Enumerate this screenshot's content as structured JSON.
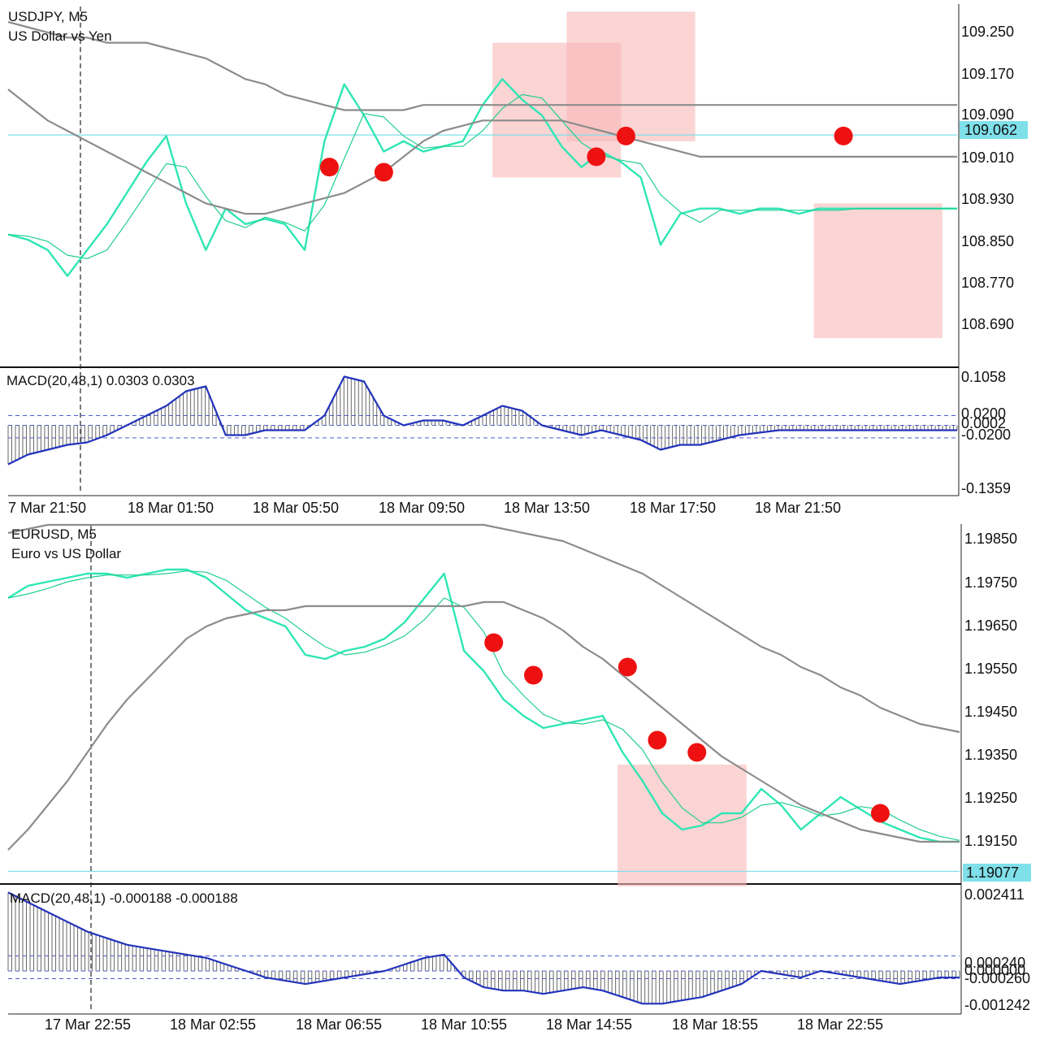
{
  "charts": [
    {
      "symbol_line": "USDJPY, M5",
      "description": "US Dollar vs Yen",
      "price_ticks": [
        "109.250",
        "109.170",
        "109.090",
        "109.010",
        "108.930",
        "108.850",
        "108.770",
        "108.690"
      ],
      "current_price": "109.062",
      "macd_label": "MACD(20,48,1) 0.0303 0.0303",
      "macd_ticks": {
        "top": "0.1058",
        "level_a": "0.0200",
        "level_b": "0.0002",
        "level_c": "-0.0200",
        "bottom": "-0.1359"
      },
      "time_labels": [
        "7 Mar 21:50",
        "18 Mar 01:50",
        "18 Mar 05:50",
        "18 Mar 09:50",
        "18 Mar 13:50",
        "18 Mar 17:50",
        "18 Mar 21:50"
      ],
      "colors": {
        "line_fast": "#2ee6b4",
        "line_slow": "#1fcf8e",
        "envelope": "#8c8c8c",
        "current_price": "#7fe0ea",
        "markers": "#ee1111",
        "zones": "#f9b7b7",
        "macd_line": "#2233bb"
      }
    },
    {
      "symbol_line": "EURUSD, M5",
      "description": "Euro vs US Dollar",
      "price_ticks": [
        "1.19850",
        "1.19750",
        "1.19650",
        "1.19550",
        "1.19450",
        "1.19350",
        "1.19250",
        "1.19150"
      ],
      "current_price": "1.19077",
      "macd_label": "MACD(20,48,1) -0.000188 -0.000188",
      "macd_ticks": {
        "top": "0.002411",
        "level_a": "0.000240",
        "level_b": "0.000000",
        "level_c": "-0.000260",
        "bottom": "-0.001242"
      },
      "time_labels": [
        "17 Mar 22:55",
        "18 Mar 02:55",
        "18 Mar 06:55",
        "18 Mar 10:55",
        "18 Mar 14:55",
        "18 Mar 18:55",
        "18 Mar 22:55"
      ],
      "colors": {
        "line_fast": "#2ee6b4",
        "line_slow": "#1fcf8e",
        "envelope": "#8c8c8c",
        "current_price": "#7fe0ea",
        "markers": "#ee1111",
        "zones": "#f9b7b7",
        "macd_line": "#2233bb"
      }
    }
  ],
  "chart_data": [
    {
      "type": "line",
      "title": "USDJPY, M5",
      "subtitle": "US Dollar vs Yen",
      "ylim": [
        108.62,
        109.31
      ],
      "x": [
        0,
        4,
        8,
        12,
        16,
        20,
        24,
        28,
        32,
        36,
        40,
        44,
        48,
        52,
        56,
        60,
        64,
        68,
        72,
        76,
        80,
        84,
        88,
        92,
        96,
        100,
        104,
        108,
        112,
        116,
        120,
        124,
        128,
        132,
        136,
        140,
        144,
        148,
        152,
        156,
        160,
        164,
        168,
        172,
        176,
        180,
        184,
        188,
        192
      ],
      "series": [
        {
          "name": "",
          "values": [
            108.87,
            108.86,
            108.84,
            108.79,
            108.84,
            108.89,
            108.95,
            109.01,
            109.06,
            108.93,
            108.84,
            108.92,
            108.89,
            108.9,
            108.89,
            108.84,
            109.05,
            109.16,
            109.1,
            109.03,
            109.05,
            109.03,
            109.04,
            109.05,
            109.12,
            109.17,
            109.13,
            109.1,
            109.04,
            109.0,
            109.03,
            109.01,
            108.98,
            108.85,
            108.91,
            108.92,
            108.92,
            108.91,
            108.92,
            108.92,
            108.91,
            108.92,
            108.92,
            108.92,
            108.92,
            108.92,
            108.92,
            108.92,
            108.92
          ]
        },
        {
          "name": "",
          "values": [
            109.28,
            109.27,
            109.26,
            109.25,
            109.25,
            109.24,
            109.24,
            109.24,
            109.23,
            109.22,
            109.21,
            109.19,
            109.17,
            109.16,
            109.14,
            109.13,
            109.12,
            109.11,
            109.11,
            109.11,
            109.11,
            109.12,
            109.12,
            109.12,
            109.12,
            109.12,
            109.12,
            109.12,
            109.12,
            109.12,
            109.12,
            109.12,
            109.12,
            109.12,
            109.12,
            109.12,
            109.12,
            109.12,
            109.12,
            109.12,
            109.12,
            109.12,
            109.12,
            109.12,
            109.12,
            109.12,
            109.12,
            109.12,
            109.12
          ]
        },
        {
          "name": "",
          "values": [
            109.15,
            109.12,
            109.09,
            109.07,
            109.05,
            109.03,
            109.01,
            108.99,
            108.97,
            108.95,
            108.93,
            108.92,
            108.91,
            108.91,
            108.92,
            108.93,
            108.94,
            108.95,
            108.97,
            108.99,
            109.02,
            109.05,
            109.07,
            109.08,
            109.09,
            109.09,
            109.09,
            109.09,
            109.09,
            109.08,
            109.07,
            109.06,
            109.05,
            109.04,
            109.03,
            109.02,
            109.02,
            109.02,
            109.02,
            109.02,
            109.02,
            109.02,
            109.02,
            109.02,
            109.02,
            109.02,
            109.02,
            109.02,
            109.02
          ]
        }
      ],
      "markers": [
        [
          65,
          109.0
        ],
        [
          76,
          108.99
        ],
        [
          119,
          109.02
        ],
        [
          125,
          109.06
        ],
        [
          169,
          109.06
        ]
      ],
      "zones": [
        [
          98,
          124,
          109.24,
          108.98
        ],
        [
          113,
          139,
          109.3,
          109.05
        ],
        [
          163,
          189,
          108.93,
          108.67
        ]
      ],
      "current_price": 109.062,
      "macd": {
        "ylim": [
          -0.1359,
          0.1058
        ],
        "values": [
          -0.08,
          -0.06,
          -0.05,
          -0.04,
          -0.035,
          -0.02,
          0.0,
          0.02,
          0.04,
          0.07,
          0.08,
          -0.02,
          -0.02,
          -0.01,
          -0.01,
          -0.01,
          0.02,
          0.1,
          0.09,
          0.02,
          0.0,
          0.01,
          0.01,
          0.0,
          0.02,
          0.04,
          0.03,
          0.0,
          -0.01,
          -0.02,
          -0.01,
          -0.02,
          -0.03,
          -0.05,
          -0.04,
          -0.04,
          -0.03,
          -0.02,
          -0.015,
          -0.01,
          -0.01,
          -0.01,
          -0.01,
          -0.01,
          -0.01,
          -0.01,
          -0.01,
          -0.01,
          -0.01
        ]
      }
    },
    {
      "type": "line",
      "title": "EURUSD, M5",
      "subtitle": "Euro vs US Dollar",
      "ylim": [
        1.1905,
        1.1993
      ],
      "x": [
        0,
        4,
        8,
        12,
        16,
        20,
        24,
        28,
        32,
        36,
        40,
        44,
        48,
        52,
        56,
        60,
        64,
        68,
        72,
        76,
        80,
        84,
        88,
        92,
        96,
        100,
        104,
        108,
        112,
        116,
        120,
        124,
        128,
        132,
        136,
        140,
        144,
        148,
        152,
        156,
        160,
        164,
        168,
        172,
        176,
        180,
        184,
        188,
        192
      ],
      "series": [
        {
          "name": "",
          "values": [
            1.1975,
            1.1978,
            1.1979,
            1.198,
            1.1981,
            1.1981,
            1.198,
            1.1981,
            1.1982,
            1.1982,
            1.198,
            1.1976,
            1.1972,
            1.197,
            1.1968,
            1.1961,
            1.196,
            1.1962,
            1.1963,
            1.1965,
            1.1969,
            1.1975,
            1.1981,
            1.1962,
            1.1957,
            1.195,
            1.1946,
            1.1943,
            1.1944,
            1.1945,
            1.1946,
            1.1937,
            1.193,
            1.1922,
            1.1918,
            1.1919,
            1.1922,
            1.1922,
            1.1928,
            1.1924,
            1.1918,
            1.1922,
            1.1926,
            1.1923,
            1.192,
            1.1918,
            1.1916,
            1.1915,
            1.1915
          ]
        },
        {
          "name": "",
          "values": [
            1.1991,
            1.1992,
            1.1993,
            1.1993,
            1.1993,
            1.1993,
            1.1993,
            1.1993,
            1.1993,
            1.1993,
            1.1993,
            1.1993,
            1.1993,
            1.1993,
            1.1993,
            1.1993,
            1.1993,
            1.1993,
            1.1993,
            1.1993,
            1.1993,
            1.1993,
            1.1993,
            1.1993,
            1.1993,
            1.1992,
            1.1991,
            1.199,
            1.1989,
            1.1987,
            1.1985,
            1.1983,
            1.1981,
            1.1978,
            1.1975,
            1.1972,
            1.1969,
            1.1966,
            1.1963,
            1.1961,
            1.1958,
            1.1956,
            1.1953,
            1.1951,
            1.1948,
            1.1946,
            1.1944,
            1.1943,
            1.1942
          ]
        },
        {
          "name": "",
          "values": [
            1.1913,
            1.1918,
            1.1924,
            1.193,
            1.1937,
            1.1944,
            1.195,
            1.1955,
            1.196,
            1.1965,
            1.1968,
            1.197,
            1.1971,
            1.1972,
            1.1972,
            1.1973,
            1.1973,
            1.1973,
            1.1973,
            1.1973,
            1.1973,
            1.1973,
            1.1973,
            1.1973,
            1.1974,
            1.1974,
            1.1972,
            1.197,
            1.1967,
            1.1963,
            1.196,
            1.1956,
            1.1952,
            1.1948,
            1.1944,
            1.194,
            1.1936,
            1.1933,
            1.193,
            1.1927,
            1.1924,
            1.1922,
            1.192,
            1.1918,
            1.1917,
            1.1916,
            1.1915,
            1.1915,
            1.1915
          ]
        }
      ],
      "markers": [
        [
          98,
          1.1964
        ],
        [
          106,
          1.1956
        ],
        [
          125,
          1.1958
        ],
        [
          131,
          1.194
        ],
        [
          139,
          1.1937
        ],
        [
          176,
          1.1922
        ]
      ],
      "zones": [
        [
          123,
          149,
          1.1934,
          1.1904
        ]
      ],
      "current_price": 1.19077,
      "macd": {
        "ylim": [
          -0.001242,
          0.002411
        ],
        "values": [
          0.0024,
          0.0021,
          0.0018,
          0.0015,
          0.0012,
          0.001,
          0.0008,
          0.0007,
          0.0006,
          0.0005,
          0.0004,
          0.0002,
          0.0,
          -0.0002,
          -0.0003,
          -0.0004,
          -0.0003,
          -0.0002,
          -0.0001,
          0.0,
          0.0002,
          0.0004,
          0.0005,
          -0.0002,
          -0.0005,
          -0.0006,
          -0.0006,
          -0.0007,
          -0.0006,
          -0.0005,
          -0.0006,
          -0.0008,
          -0.001,
          -0.001,
          -0.0009,
          -0.0008,
          -0.0006,
          -0.0004,
          0.0,
          -0.0001,
          -0.0002,
          0.0,
          -0.0001,
          -0.0002,
          -0.0003,
          -0.0004,
          -0.0003,
          -0.0002,
          -0.0002
        ]
      }
    }
  ]
}
